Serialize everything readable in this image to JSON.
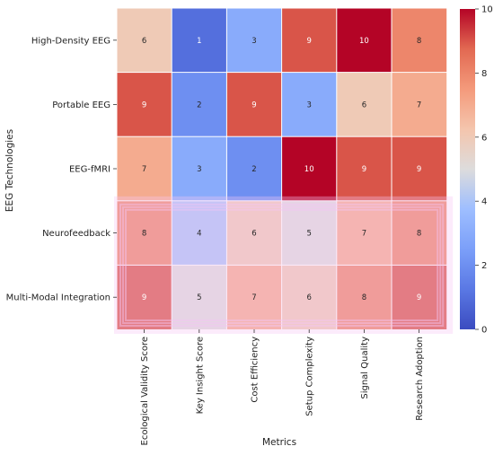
{
  "chart_data": {
    "type": "heatmap",
    "title": "",
    "xlabel": "Metrics",
    "ylabel": "EEG Technologies",
    "x_categories": [
      "Ecological Validity Score",
      "Key Insight Score",
      "Cost Efficiency",
      "Setup Complexity",
      "Signal Quality",
      "Research Adoption"
    ],
    "y_categories": [
      "High-Density EEG",
      "Portable EEG",
      "EEG-fMRI",
      "Neurofeedback",
      "Multi-Modal Integration"
    ],
    "values": [
      [
        6,
        1,
        3,
        9,
        10,
        8
      ],
      [
        9,
        2,
        9,
        3,
        6,
        7
      ],
      [
        7,
        3,
        2,
        10,
        9,
        9
      ],
      [
        8,
        4,
        6,
        5,
        7,
        8
      ],
      [
        9,
        5,
        7,
        6,
        8,
        9
      ]
    ],
    "colormap": "coolwarm",
    "colorbar": {
      "min": 0,
      "max": 10,
      "ticks": [
        "0",
        "2",
        "4",
        "6",
        "8",
        "10"
      ]
    },
    "annotations": true,
    "highlight": {
      "rows": [
        "Neurofeedback",
        "Multi-Modal Integration"
      ],
      "color": "#f5c6f3"
    }
  }
}
